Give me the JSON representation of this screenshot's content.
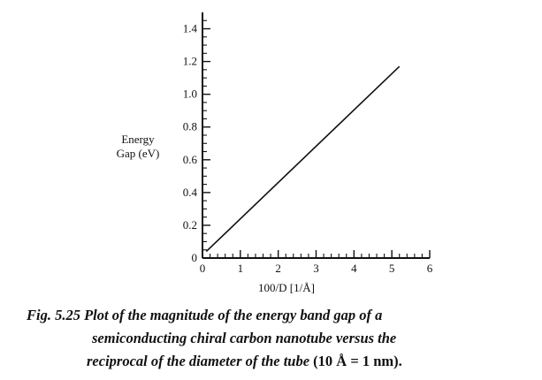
{
  "chart_data": {
    "type": "line",
    "xlabel": "100/D [1/Å]",
    "ylabel_line1": "Energy",
    "ylabel_line2": "Gap (eV)",
    "xlim": [
      0,
      6
    ],
    "ylim": [
      0,
      1.5
    ],
    "x_ticks": [
      0,
      1,
      2,
      3,
      4,
      5,
      6
    ],
    "y_ticks": [
      0,
      0.2,
      0.4,
      0.6,
      0.8,
      1.0,
      1.2,
      1.4
    ],
    "x_tick_labels": [
      "0",
      "1",
      "2",
      "3",
      "4",
      "5",
      "6"
    ],
    "y_tick_labels": [
      "0",
      "0.2",
      "0.4",
      "0.6",
      "0.8",
      "1.0",
      "1.2",
      "1.4"
    ],
    "grid": false,
    "legend": "none",
    "series": [
      {
        "x": [
          0.1,
          5.2
        ],
        "y": [
          0.04,
          1.17
        ]
      }
    ]
  },
  "caption": {
    "line1": "Fig. 5.25 Plot of the magnitude of the energy band gap of a",
    "line2": "semiconducting chiral carbon nanotube versus the",
    "line3_italic": "reciprocal of the diameter of the tube ",
    "line3_upright": "(10 Å = 1 nm)."
  }
}
